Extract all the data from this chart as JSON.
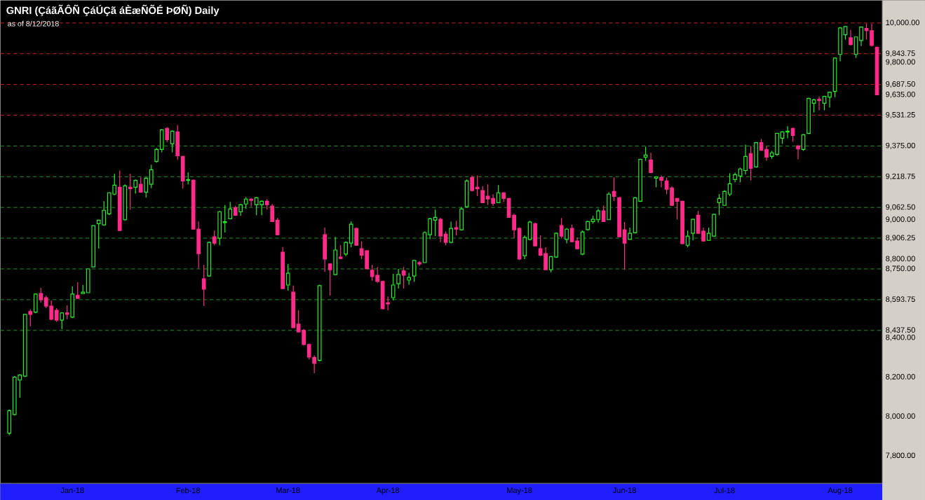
{
  "chart_data": {
    "type": "candlestick",
    "title": "GNRI (ÇáãÃÔÑ ÇáÚÇã áÈæÑÕÉ ÞØÑ) Daily",
    "subtitle": "as of 8/12/2018",
    "categories": [
      null,
      null,
      null,
      null,
      null,
      null,
      null,
      null,
      null,
      null,
      null,
      null,
      "Jan-18",
      null,
      null,
      null,
      null,
      null,
      null,
      null,
      null,
      null,
      null,
      null,
      null,
      null,
      null,
      null,
      null,
      null,
      null,
      null,
      null,
      null,
      "Feb-18",
      null,
      null,
      null,
      null,
      null,
      null,
      null,
      null,
      null,
      null,
      null,
      null,
      null,
      null,
      null,
      null,
      null,
      null,
      "Mar-18",
      null,
      null,
      null,
      null,
      null,
      null,
      null,
      null,
      null,
      null,
      null,
      null,
      null,
      null,
      null,
      null,
      null,
      null,
      "Apr-18",
      null,
      null,
      null,
      null,
      null,
      null,
      null,
      null,
      null,
      null,
      null,
      null,
      null,
      null,
      null,
      null,
      null,
      null,
      null,
      null,
      null,
      null,
      null,
      null,
      "May-18",
      null,
      null,
      null,
      null,
      null,
      null,
      null,
      null,
      null,
      null,
      null,
      null,
      null,
      null,
      null,
      null,
      null,
      null,
      null,
      "Jun-18",
      null,
      null,
      null,
      null,
      null,
      null,
      null,
      null,
      null,
      null,
      null,
      null,
      null,
      null,
      null,
      null,
      null,
      null,
      "Jul-18",
      null,
      null,
      null,
      null,
      null,
      null,
      null,
      null,
      null,
      null,
      null,
      null,
      null,
      null,
      null,
      null,
      null,
      null,
      null,
      null,
      null,
      "Aug-18",
      null,
      null,
      null,
      null,
      null,
      null,
      null
    ],
    "ohlc": [
      [
        7915,
        8035,
        7905,
        8030
      ],
      [
        8010,
        8205,
        8005,
        8200
      ],
      [
        8185,
        8215,
        8095,
        8210
      ],
      [
        8205,
        8520,
        8200,
        8519
      ],
      [
        8533,
        8544,
        8458,
        8519
      ],
      [
        8530,
        8625,
        8525,
        8622
      ],
      [
        8625,
        8654,
        8579,
        8593
      ],
      [
        8604,
        8615,
        8551,
        8561
      ],
      [
        8561,
        8590,
        8490,
        8494
      ],
      [
        8540,
        8551,
        8480,
        8490
      ],
      [
        8490,
        8530,
        8444,
        8526
      ],
      [
        8526,
        8565,
        8494,
        8519
      ],
      [
        8505,
        8661,
        8500,
        8622
      ],
      [
        8615,
        8682,
        8600,
        8600
      ],
      [
        8625,
        8668,
        8625,
        8632
      ],
      [
        8629,
        8752,
        8629,
        8750
      ],
      [
        8760,
        8970,
        8760,
        8970
      ],
      [
        8980,
        8998,
        8853,
        8998
      ],
      [
        8974,
        9094,
        8970,
        9048
      ],
      [
        9030,
        9140,
        9023,
        9137
      ],
      [
        9130,
        9233,
        9125,
        9176
      ],
      [
        9165,
        9250,
        8945,
        8945
      ],
      [
        9000,
        9180,
        8995,
        9172
      ],
      [
        9165,
        9233,
        9052,
        9158
      ],
      [
        9165,
        9205,
        9133,
        9200
      ],
      [
        9180,
        9215,
        9140,
        9140
      ],
      [
        9140,
        9215,
        9112,
        9211
      ],
      [
        9180,
        9279,
        9160,
        9254
      ],
      [
        9297,
        9365,
        9290,
        9357
      ],
      [
        9357,
        9460,
        9343,
        9457
      ],
      [
        9464,
        9471,
        9393,
        9407
      ],
      [
        9386,
        9455,
        9343,
        9450
      ],
      [
        9446,
        9481,
        9304,
        9325
      ],
      [
        9322,
        9325,
        9158,
        9197
      ],
      [
        9200,
        9240,
        9180,
        9204
      ],
      [
        9201,
        9205,
        8950,
        8952
      ],
      [
        8952,
        8991,
        8753,
        8828
      ],
      [
        8700,
        8770,
        8561,
        8647
      ],
      [
        8714,
        8890,
        8710,
        8885
      ],
      [
        8913,
        8945,
        8870,
        8881
      ],
      [
        8906,
        9045,
        8870,
        9041
      ],
      [
        8985,
        9075,
        8935,
        8990
      ],
      [
        9005,
        9091,
        9005,
        9055
      ],
      [
        9062,
        9070,
        9020,
        9023
      ],
      [
        9040,
        9080,
        9020,
        9076
      ],
      [
        9080,
        9115,
        9055,
        9105
      ],
      [
        9105,
        9110,
        9066,
        9098
      ],
      [
        9076,
        9115,
        9023,
        9112
      ],
      [
        9076,
        9098,
        9023,
        9094
      ],
      [
        9094,
        9105,
        9052,
        9076
      ],
      [
        9069,
        9080,
        8991,
        8991
      ],
      [
        8998,
        9010,
        8920,
        8924
      ],
      [
        8835,
        8860,
        8648,
        8650
      ],
      [
        8668,
        8775,
        8640,
        8728
      ],
      [
        8632,
        8665,
        8450,
        8451
      ],
      [
        8469,
        8540,
        8425,
        8430
      ],
      [
        8437,
        8445,
        8360,
        8366
      ],
      [
        8366,
        8370,
        8290,
        8302
      ],
      [
        8300,
        8310,
        8220,
        8270
      ],
      [
        8285,
        8670,
        8280,
        8665
      ],
      [
        8924,
        8960,
        8735,
        8800
      ],
      [
        8775,
        8778,
        8615,
        8746
      ],
      [
        8721,
        8913,
        8718,
        8846
      ],
      [
        8810,
        8870,
        8800,
        8803
      ],
      [
        8825,
        8890,
        8815,
        8885
      ],
      [
        8881,
        8991,
        8860,
        8977
      ],
      [
        8956,
        8960,
        8870,
        8870
      ],
      [
        8853,
        8890,
        8800,
        8820
      ],
      [
        8842,
        8845,
        8750,
        8750
      ],
      [
        8743,
        8770,
        8690,
        8711
      ],
      [
        8718,
        8760,
        8680,
        8686
      ],
      [
        8686,
        8690,
        8545,
        8547
      ],
      [
        8578,
        8610,
        8540,
        8572
      ],
      [
        8604,
        8725,
        8590,
        8668
      ],
      [
        8675,
        8750,
        8650,
        8722
      ],
      [
        8740,
        8760,
        8650,
        8718
      ],
      [
        8693,
        8730,
        8670,
        8707
      ],
      [
        8714,
        8795,
        8685,
        8793
      ],
      [
        8782,
        8790,
        8765,
        8775
      ],
      [
        8782,
        8940,
        8780,
        8935
      ],
      [
        8924,
        9010,
        8900,
        9005
      ],
      [
        8998,
        9052,
        8917,
        9012
      ],
      [
        9002,
        9010,
        8885,
        8917
      ],
      [
        8927,
        8940,
        8870,
        8885
      ],
      [
        8885,
        8990,
        8880,
        8956
      ],
      [
        8960,
        8995,
        8920,
        8952
      ],
      [
        8949,
        9065,
        8945,
        9055
      ],
      [
        9066,
        9205,
        9060,
        9197
      ],
      [
        9215,
        9225,
        9145,
        9148
      ],
      [
        9165,
        9225,
        9120,
        9158
      ],
      [
        9148,
        9170,
        9085,
        9087
      ],
      [
        9120,
        9180,
        9075,
        9105
      ],
      [
        9108,
        9130,
        9070,
        9083
      ],
      [
        9087,
        9175,
        9085,
        9137
      ],
      [
        9137,
        9140,
        9090,
        9108
      ],
      [
        9108,
        9110,
        9010,
        9012
      ],
      [
        9023,
        9030,
        8906,
        8949
      ],
      [
        8956,
        8960,
        8795,
        8800
      ],
      [
        8817,
        8920,
        8800,
        8910
      ],
      [
        8900,
        8995,
        8895,
        8988
      ],
      [
        8980,
        8985,
        8865,
        8867
      ],
      [
        8853,
        8920,
        8815,
        8820
      ],
      [
        8828,
        8860,
        8745,
        8746
      ],
      [
        8746,
        8815,
        8732,
        8813
      ],
      [
        8810,
        8935,
        8805,
        8931
      ],
      [
        8970,
        9009,
        8905,
        8917
      ],
      [
        8900,
        8958,
        8880,
        8952
      ],
      [
        8956,
        8975,
        8885,
        8888
      ],
      [
        8892,
        8910,
        8850,
        8853
      ],
      [
        8825,
        8945,
        8820,
        8938
      ],
      [
        8950,
        8995,
        8945,
        8991
      ],
      [
        8991,
        9020,
        8980,
        9002
      ],
      [
        9000,
        9055,
        8985,
        9045
      ],
      [
        9045,
        9073,
        8990,
        8991
      ],
      [
        9000,
        9140,
        9000,
        9130
      ],
      [
        9144,
        9215,
        9095,
        9119
      ],
      [
        9112,
        9115,
        8910,
        8913
      ],
      [
        8949,
        8988,
        8745,
        8881
      ],
      [
        8900,
        8960,
        8900,
        8931
      ],
      [
        8934,
        9115,
        8930,
        9112
      ],
      [
        9094,
        9310,
        9090,
        9307
      ],
      [
        9318,
        9371,
        9300,
        9329
      ],
      [
        9304,
        9340,
        9240,
        9240
      ],
      [
        9211,
        9220,
        9165,
        9218
      ],
      [
        9215,
        9225,
        9165,
        9201
      ],
      [
        9197,
        9215,
        9130,
        9155
      ],
      [
        9162,
        9170,
        9070,
        9073
      ],
      [
        9108,
        9110,
        9002,
        9094
      ],
      [
        9094,
        9095,
        8875,
        8878
      ],
      [
        8870,
        8945,
        8860,
        8917
      ],
      [
        8931,
        9005,
        8895,
        9002
      ],
      [
        9023,
        9045,
        8930,
        8931
      ],
      [
        8942,
        8960,
        8890,
        8892
      ],
      [
        8895,
        8960,
        8893,
        8931
      ],
      [
        8917,
        9030,
        8915,
        9027
      ],
      [
        9087,
        9130,
        9023,
        9108
      ],
      [
        9073,
        9150,
        9070,
        9144
      ],
      [
        9130,
        9236,
        9120,
        9183
      ],
      [
        9204,
        9240,
        9190,
        9229
      ],
      [
        9222,
        9265,
        9190,
        9258
      ],
      [
        9250,
        9382,
        9230,
        9322
      ],
      [
        9336,
        9375,
        9200,
        9261
      ],
      [
        9268,
        9395,
        9265,
        9392
      ],
      [
        9392,
        9410,
        9350,
        9353
      ],
      [
        9357,
        9375,
        9300,
        9318
      ],
      [
        9322,
        9350,
        9310,
        9340
      ],
      [
        9332,
        9440,
        9325,
        9439
      ],
      [
        9414,
        9450,
        9385,
        9446
      ],
      [
        9446,
        9475,
        9414,
        9450
      ],
      [
        9464,
        9468,
        9396,
        9428
      ],
      [
        9375,
        9378,
        9307,
        9360
      ],
      [
        9357,
        9435,
        9350,
        9432
      ],
      [
        9439,
        9620,
        9435,
        9616
      ],
      [
        9592,
        9615,
        9545,
        9609
      ],
      [
        9612,
        9627,
        9556,
        9605
      ],
      [
        9592,
        9630,
        9556,
        9627
      ],
      [
        9623,
        9650,
        9570,
        9648
      ],
      [
        9652,
        9825,
        9623,
        9822
      ],
      [
        9840,
        9980,
        9805,
        9975
      ],
      [
        9940,
        9985,
        9915,
        9982
      ],
      [
        9925,
        9965,
        9885,
        9890
      ],
      [
        9840,
        9930,
        9822,
        9929
      ],
      [
        9911,
        9982,
        9883,
        9979
      ],
      [
        9972,
        9996,
        9915,
        9961
      ],
      [
        9961,
        9996,
        9880,
        9886
      ],
      [
        9876,
        9880,
        9635,
        9635
      ]
    ],
    "colors": [
      "#22ee22",
      "#22ee22",
      "#22ee22",
      "#22ee22",
      "#ff2a8a",
      "#22ee22",
      "#ff2a8a",
      "#ff2a8a",
      "#ff2a8a",
      "#ff2a8a",
      "#22ee22",
      "#ff2a8a",
      "#22ee22",
      "#ff2a8a",
      "#22ee22",
      "#22ee22",
      "#22ee22",
      "#22ee22",
      "#22ee22",
      "#22ee22",
      "#22ee22",
      "#ff2a8a",
      "#22ee22",
      "#ff2a8a",
      "#22ee22",
      "#ff2a8a",
      "#22ee22",
      "#22ee22",
      "#22ee22",
      "#22ee22",
      "#ff2a8a",
      "#22ee22",
      "#ff2a8a",
      "#ff2a8a",
      "#22ee22",
      "#ff2a8a",
      "#ff2a8a",
      "#ff2a8a",
      "#22ee22",
      "#ff2a8a",
      "#22ee22",
      "#22ee22",
      "#22ee22",
      "#ff2a8a",
      "#22ee22",
      "#22ee22",
      "#ff2a8a",
      "#22ee22",
      "#22ee22",
      "#ff2a8a",
      "#ff2a8a",
      "#ff2a8a",
      "#ff2a8a",
      "#22ee22",
      "#ff2a8a",
      "#ff2a8a",
      "#ff2a8a",
      "#ff2a8a",
      "#ff2a8a",
      "#22ee22",
      "#ff2a8a",
      "#ff2a8a",
      "#22ee22",
      "#ff2a8a",
      "#22ee22",
      "#22ee22",
      "#ff2a8a",
      "#ff2a8a",
      "#ff2a8a",
      "#ff2a8a",
      "#ff2a8a",
      "#ff2a8a",
      "#ff2a8a",
      "#22ee22",
      "#22ee22",
      "#ff2a8a",
      "#22ee22",
      "#22ee22",
      "#ff2a8a",
      "#22ee22",
      "#22ee22",
      "#22ee22",
      "#ff2a8a",
      "#ff2a8a",
      "#22ee22",
      "#ff2a8a",
      "#22ee22",
      "#22ee22",
      "#ff2a8a",
      "#ff2a8a",
      "#ff2a8a",
      "#ff2a8a",
      "#ff2a8a",
      "#22ee22",
      "#ff2a8a",
      "#ff2a8a",
      "#ff2a8a",
      "#ff2a8a",
      "#22ee22",
      "#22ee22",
      "#ff2a8a",
      "#ff2a8a",
      "#ff2a8a",
      "#22ee22",
      "#22ee22",
      "#ff2a8a",
      "#22ee22",
      "#ff2a8a",
      "#ff2a8a",
      "#22ee22",
      "#22ee22",
      "#22ee22",
      "#22ee22",
      "#ff2a8a",
      "#22ee22",
      "#ff2a8a",
      "#ff2a8a",
      "#ff2a8a",
      "#22ee22",
      "#22ee22",
      "#22ee22",
      "#22ee22",
      "#ff2a8a",
      "#22ee22",
      "#ff2a8a",
      "#ff2a8a",
      "#ff2a8a",
      "#ff2a8a",
      "#ff2a8a",
      "#22ee22",
      "#22ee22",
      "#ff2a8a",
      "#ff2a8a",
      "#22ee22",
      "#22ee22",
      "#22ee22",
      "#22ee22",
      "#22ee22",
      "#22ee22",
      "#22ee22",
      "#22ee22",
      "#ff2a8a",
      "#22ee22",
      "#ff2a8a",
      "#ff2a8a",
      "#22ee22",
      "#22ee22",
      "#22ee22",
      "#22ee22",
      "#ff2a8a",
      "#ff2a8a",
      "#22ee22",
      "#22ee22",
      "#22ee22",
      "#ff2a8a",
      "#22ee22",
      "#22ee22",
      "#22ee22",
      "#22ee22",
      "#22ee22",
      "#ff2a8a",
      "#22ee22",
      "#22ee22",
      "#ff2a8a",
      "#ff2a8a",
      "#ff2a8a"
    ],
    "ylim": [
      7660,
      10115
    ],
    "yticks": [
      {
        "value": 7800,
        "label": "7,800.00"
      },
      {
        "value": 8000,
        "label": "8,000.00"
      },
      {
        "value": 8200,
        "label": "8,200.00"
      },
      {
        "value": 8400,
        "label": "8,400.00"
      },
      {
        "value": 8800,
        "label": "8,800.00"
      },
      {
        "value": 9000,
        "label": "9,000.00"
      },
      {
        "value": 9635,
        "label": "9,635.00"
      },
      {
        "value": 9800,
        "label": "9,800.00"
      }
    ],
    "ref_lines": [
      {
        "axis": "y",
        "value": 10000,
        "label": "10,000.00",
        "color": "#c81e1e",
        "line_style": "dashed"
      },
      {
        "axis": "y",
        "value": 9843.75,
        "label": "9,843.75",
        "color": "#c81e1e",
        "line_style": "dashed"
      },
      {
        "axis": "y",
        "value": 9687.5,
        "label": "9,687.50",
        "color": "#c81e1e",
        "line_style": "dashed"
      },
      {
        "axis": "y",
        "value": 9531.25,
        "label": "9,531.25",
        "color": "#c81e1e",
        "line_style": "dashed"
      },
      {
        "axis": "y",
        "value": 9375,
        "label": "9,375.00",
        "color": "#1e961e",
        "line_style": "dashed"
      },
      {
        "axis": "y",
        "value": 9218.75,
        "label": "9,218.75",
        "color": "#1e961e",
        "line_style": "dashed"
      },
      {
        "axis": "y",
        "value": 9062.5,
        "label": "9,062.50",
        "color": "#1e961e",
        "line_style": "dashed"
      },
      {
        "axis": "y",
        "value": 8906.25,
        "label": "8,906.25",
        "color": "#1e961e",
        "line_style": "dashed"
      },
      {
        "axis": "y",
        "value": 8750,
        "label": "8,750.00",
        "color": "#1e961e",
        "line_style": "dashed"
      },
      {
        "axis": "y",
        "value": 8593.75,
        "label": "8,593.75",
        "color": "#1e961e",
        "line_style": "dashed"
      },
      {
        "axis": "y",
        "value": 8437.5,
        "label": "8,437.50",
        "color": "#1e961e",
        "line_style": "dashed"
      }
    ]
  }
}
